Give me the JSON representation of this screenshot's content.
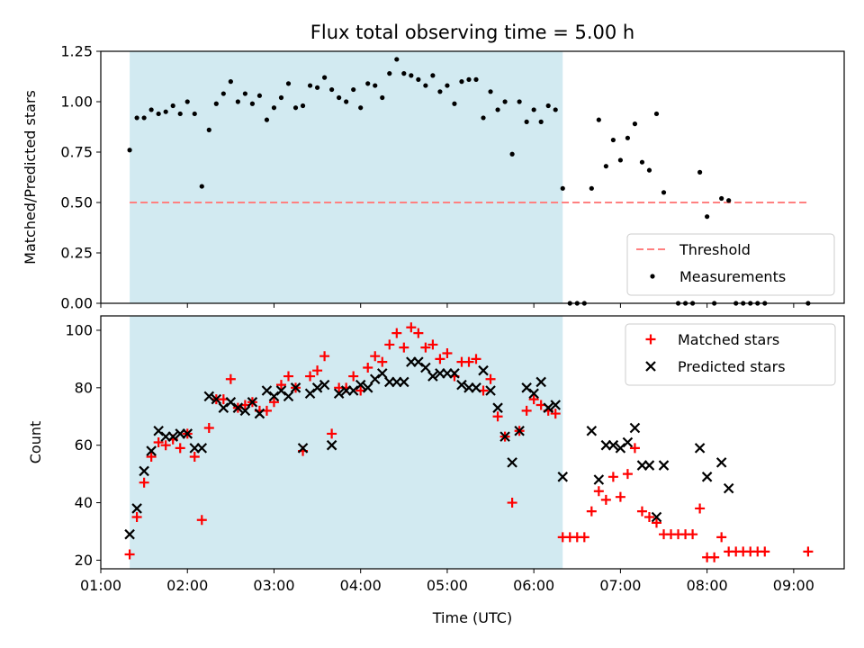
{
  "title": "Flux total observing time = 5.00 h",
  "chart_data": [
    {
      "type": "scatter",
      "panel": "top",
      "ylabel": "Matched/Predicted stars",
      "xlabel": "",
      "ylim": [
        0,
        1.25
      ],
      "yticks": [
        0.0,
        0.25,
        0.5,
        0.75,
        1.0,
        1.25
      ],
      "ytick_labels": [
        "0.00",
        "0.25",
        "0.50",
        "0.75",
        "1.00",
        "1.25"
      ],
      "shaded_span": {
        "start": "01:20",
        "end": "06:20",
        "color": "#add8e6"
      },
      "threshold": {
        "name": "Threshold",
        "value": 0.5,
        "x_start": "01:20",
        "x_end": "09:10",
        "color": "#ff8080"
      },
      "legend": {
        "placement": "lower right",
        "entries": [
          "Threshold",
          "Measurements"
        ]
      },
      "series": [
        {
          "name": "Measurements",
          "marker": "dot",
          "color": "#000000",
          "points": [
            [
              "01:20",
              0.76
            ],
            [
              "01:25",
              0.92
            ],
            [
              "01:30",
              0.92
            ],
            [
              "01:35",
              0.96
            ],
            [
              "01:40",
              0.94
            ],
            [
              "01:45",
              0.95
            ],
            [
              "01:50",
              0.98
            ],
            [
              "01:55",
              0.94
            ],
            [
              "02:00",
              1.0
            ],
            [
              "02:05",
              0.94
            ],
            [
              "02:10",
              0.58
            ],
            [
              "02:15",
              0.86
            ],
            [
              "02:20",
              0.99
            ],
            [
              "02:25",
              1.04
            ],
            [
              "02:30",
              1.1
            ],
            [
              "02:35",
              1.0
            ],
            [
              "02:40",
              1.04
            ],
            [
              "02:45",
              0.99
            ],
            [
              "02:50",
              1.03
            ],
            [
              "02:55",
              0.91
            ],
            [
              "03:00",
              0.97
            ],
            [
              "03:05",
              1.02
            ],
            [
              "03:10",
              1.09
            ],
            [
              "03:15",
              0.97
            ],
            [
              "03:20",
              0.98
            ],
            [
              "03:25",
              1.08
            ],
            [
              "03:30",
              1.07
            ],
            [
              "03:35",
              1.12
            ],
            [
              "03:40",
              1.06
            ],
            [
              "03:45",
              1.02
            ],
            [
              "03:50",
              1.0
            ],
            [
              "03:55",
              1.06
            ],
            [
              "04:00",
              0.97
            ],
            [
              "04:05",
              1.09
            ],
            [
              "04:10",
              1.08
            ],
            [
              "04:15",
              1.02
            ],
            [
              "04:20",
              1.14
            ],
            [
              "04:25",
              1.21
            ],
            [
              "04:30",
              1.14
            ],
            [
              "04:35",
              1.13
            ],
            [
              "04:40",
              1.11
            ],
            [
              "04:45",
              1.08
            ],
            [
              "04:50",
              1.13
            ],
            [
              "04:55",
              1.05
            ],
            [
              "05:00",
              1.08
            ],
            [
              "05:05",
              0.99
            ],
            [
              "05:10",
              1.1
            ],
            [
              "05:15",
              1.11
            ],
            [
              "05:20",
              1.11
            ],
            [
              "05:25",
              0.92
            ],
            [
              "05:30",
              1.05
            ],
            [
              "05:35",
              0.96
            ],
            [
              "05:40",
              1.0
            ],
            [
              "05:45",
              0.74
            ],
            [
              "05:50",
              1.0
            ],
            [
              "05:55",
              0.9
            ],
            [
              "06:00",
              0.96
            ],
            [
              "06:05",
              0.9
            ],
            [
              "06:10",
              0.98
            ],
            [
              "06:15",
              0.96
            ],
            [
              "06:20",
              0.57
            ],
            [
              "06:25",
              0.0
            ],
            [
              "06:30",
              0.0
            ],
            [
              "06:35",
              0.0
            ],
            [
              "06:40",
              0.57
            ],
            [
              "06:45",
              0.91
            ],
            [
              "06:50",
              0.68
            ],
            [
              "06:55",
              0.81
            ],
            [
              "07:00",
              0.71
            ],
            [
              "07:05",
              0.82
            ],
            [
              "07:10",
              0.89
            ],
            [
              "07:15",
              0.7
            ],
            [
              "07:20",
              0.66
            ],
            [
              "07:25",
              0.94
            ],
            [
              "07:30",
              0.55
            ],
            [
              "07:40",
              0.0
            ],
            [
              "07:45",
              0.0
            ],
            [
              "07:50",
              0.0
            ],
            [
              "07:55",
              0.65
            ],
            [
              "08:00",
              0.43
            ],
            [
              "08:05",
              0.0
            ],
            [
              "08:10",
              0.52
            ],
            [
              "08:15",
              0.51
            ],
            [
              "08:20",
              0.0
            ],
            [
              "08:25",
              0.0
            ],
            [
              "08:30",
              0.0
            ],
            [
              "08:35",
              0.0
            ],
            [
              "08:40",
              0.0
            ],
            [
              "09:10",
              0.0
            ]
          ]
        }
      ]
    },
    {
      "type": "scatter",
      "panel": "bottom",
      "xlabel": "Time (UTC)",
      "ylabel": "Count",
      "xlim": [
        "01:00",
        "09:35"
      ],
      "xticks": [
        "01:00",
        "02:00",
        "03:00",
        "04:00",
        "05:00",
        "06:00",
        "07:00",
        "08:00",
        "09:00"
      ],
      "ylim": [
        17,
        105
      ],
      "yticks": [
        20,
        40,
        60,
        80,
        100
      ],
      "ytick_labels": [
        "20",
        "40",
        "60",
        "80",
        "100"
      ],
      "shaded_span": {
        "start": "01:20",
        "end": "06:20",
        "color": "#add8e6"
      },
      "legend": {
        "placement": "upper right",
        "entries": [
          "Matched stars",
          "Predicted stars"
        ]
      },
      "series": [
        {
          "name": "Matched stars",
          "marker": "plus",
          "color": "#ff0000",
          "points": [
            [
              "01:20",
              22
            ],
            [
              "01:25",
              35
            ],
            [
              "01:30",
              47
            ],
            [
              "01:35",
              56
            ],
            [
              "01:40",
              61
            ],
            [
              "01:45",
              60
            ],
            [
              "01:50",
              62
            ],
            [
              "01:55",
              59
            ],
            [
              "02:00",
              64
            ],
            [
              "02:05",
              56
            ],
            [
              "02:10",
              34
            ],
            [
              "02:15",
              66
            ],
            [
              "02:20",
              76
            ],
            [
              "02:25",
              76
            ],
            [
              "02:30",
              83
            ],
            [
              "02:35",
              73
            ],
            [
              "02:40",
              74
            ],
            [
              "02:45",
              75
            ],
            [
              "02:50",
              72
            ],
            [
              "02:55",
              72
            ],
            [
              "03:00",
              75
            ],
            [
              "03:05",
              81
            ],
            [
              "03:10",
              84
            ],
            [
              "03:15",
              80
            ],
            [
              "03:20",
              58
            ],
            [
              "03:25",
              84
            ],
            [
              "03:30",
              86
            ],
            [
              "03:35",
              91
            ],
            [
              "03:40",
              64
            ],
            [
              "03:45",
              80
            ],
            [
              "03:50",
              80
            ],
            [
              "03:55",
              84
            ],
            [
              "04:00",
              79
            ],
            [
              "04:05",
              87
            ],
            [
              "04:10",
              91
            ],
            [
              "04:15",
              89
            ],
            [
              "04:20",
              95
            ],
            [
              "04:25",
              99
            ],
            [
              "04:30",
              94
            ],
            [
              "04:35",
              101
            ],
            [
              "04:40",
              99
            ],
            [
              "04:45",
              94
            ],
            [
              "04:50",
              95
            ],
            [
              "04:55",
              90
            ],
            [
              "05:00",
              92
            ],
            [
              "05:05",
              84
            ],
            [
              "05:10",
              89
            ],
            [
              "05:15",
              89
            ],
            [
              "05:20",
              90
            ],
            [
              "05:25",
              79
            ],
            [
              "05:30",
              83
            ],
            [
              "05:35",
              70
            ],
            [
              "05:40",
              63
            ],
            [
              "05:45",
              40
            ],
            [
              "05:50",
              65
            ],
            [
              "05:55",
              72
            ],
            [
              "06:00",
              76
            ],
            [
              "06:05",
              74
            ],
            [
              "06:10",
              72
            ],
            [
              "06:15",
              71
            ],
            [
              "06:20",
              28
            ],
            [
              "06:25",
              28
            ],
            [
              "06:30",
              28
            ],
            [
              "06:35",
              28
            ],
            [
              "06:40",
              37
            ],
            [
              "06:45",
              44
            ],
            [
              "06:50",
              41
            ],
            [
              "06:55",
              49
            ],
            [
              "07:00",
              42
            ],
            [
              "07:05",
              50
            ],
            [
              "07:10",
              59
            ],
            [
              "07:15",
              37
            ],
            [
              "07:20",
              35
            ],
            [
              "07:25",
              33
            ],
            [
              "07:30",
              29
            ],
            [
              "07:35",
              29
            ],
            [
              "07:40",
              29
            ],
            [
              "07:45",
              29
            ],
            [
              "07:50",
              29
            ],
            [
              "07:55",
              38
            ],
            [
              "08:00",
              21
            ],
            [
              "08:05",
              21
            ],
            [
              "08:10",
              28
            ],
            [
              "08:15",
              23
            ],
            [
              "08:20",
              23
            ],
            [
              "08:25",
              23
            ],
            [
              "08:30",
              23
            ],
            [
              "08:35",
              23
            ],
            [
              "08:40",
              23
            ],
            [
              "09:10",
              23
            ]
          ]
        },
        {
          "name": "Predicted stars",
          "marker": "x",
          "color": "#000000",
          "points": [
            [
              "01:20",
              29
            ],
            [
              "01:25",
              38
            ],
            [
              "01:30",
              51
            ],
            [
              "01:35",
              58
            ],
            [
              "01:40",
              65
            ],
            [
              "01:45",
              63
            ],
            [
              "01:50",
              63
            ],
            [
              "01:55",
              64
            ],
            [
              "02:00",
              64
            ],
            [
              "02:05",
              59
            ],
            [
              "02:10",
              59
            ],
            [
              "02:15",
              77
            ],
            [
              "02:20",
              76
            ],
            [
              "02:25",
              73
            ],
            [
              "02:30",
              75
            ],
            [
              "02:35",
              73
            ],
            [
              "02:40",
              72
            ],
            [
              "02:45",
              75
            ],
            [
              "02:50",
              71
            ],
            [
              "02:55",
              79
            ],
            [
              "03:00",
              77
            ],
            [
              "03:05",
              79
            ],
            [
              "03:10",
              77
            ],
            [
              "03:15",
              80
            ],
            [
              "03:20",
              59
            ],
            [
              "03:25",
              78
            ],
            [
              "03:30",
              80
            ],
            [
              "03:35",
              81
            ],
            [
              "03:40",
              60
            ],
            [
              "03:45",
              78
            ],
            [
              "03:50",
              79
            ],
            [
              "03:55",
              79
            ],
            [
              "04:00",
              81
            ],
            [
              "04:05",
              80
            ],
            [
              "04:10",
              83
            ],
            [
              "04:15",
              85
            ],
            [
              "04:20",
              82
            ],
            [
              "04:25",
              82
            ],
            [
              "04:30",
              82
            ],
            [
              "04:35",
              89
            ],
            [
              "04:40",
              89
            ],
            [
              "04:45",
              87
            ],
            [
              "04:50",
              84
            ],
            [
              "04:55",
              85
            ],
            [
              "05:00",
              85
            ],
            [
              "05:05",
              85
            ],
            [
              "05:10",
              81
            ],
            [
              "05:15",
              80
            ],
            [
              "05:20",
              80
            ],
            [
              "05:25",
              86
            ],
            [
              "05:30",
              79
            ],
            [
              "05:35",
              73
            ],
            [
              "05:40",
              63
            ],
            [
              "05:45",
              54
            ],
            [
              "05:50",
              65
            ],
            [
              "05:55",
              80
            ],
            [
              "06:00",
              78
            ],
            [
              "06:05",
              82
            ],
            [
              "06:10",
              73
            ],
            [
              "06:15",
              74
            ],
            [
              "06:20",
              49
            ],
            [
              "06:40",
              65
            ],
            [
              "06:45",
              48
            ],
            [
              "06:50",
              60
            ],
            [
              "06:55",
              60
            ],
            [
              "07:00",
              59
            ],
            [
              "07:05",
              61
            ],
            [
              "07:10",
              66
            ],
            [
              "07:15",
              53
            ],
            [
              "07:20",
              53
            ],
            [
              "07:25",
              35
            ],
            [
              "07:30",
              53
            ],
            [
              "07:55",
              59
            ],
            [
              "08:00",
              49
            ],
            [
              "08:10",
              54
            ],
            [
              "08:15",
              45
            ]
          ]
        }
      ]
    }
  ]
}
